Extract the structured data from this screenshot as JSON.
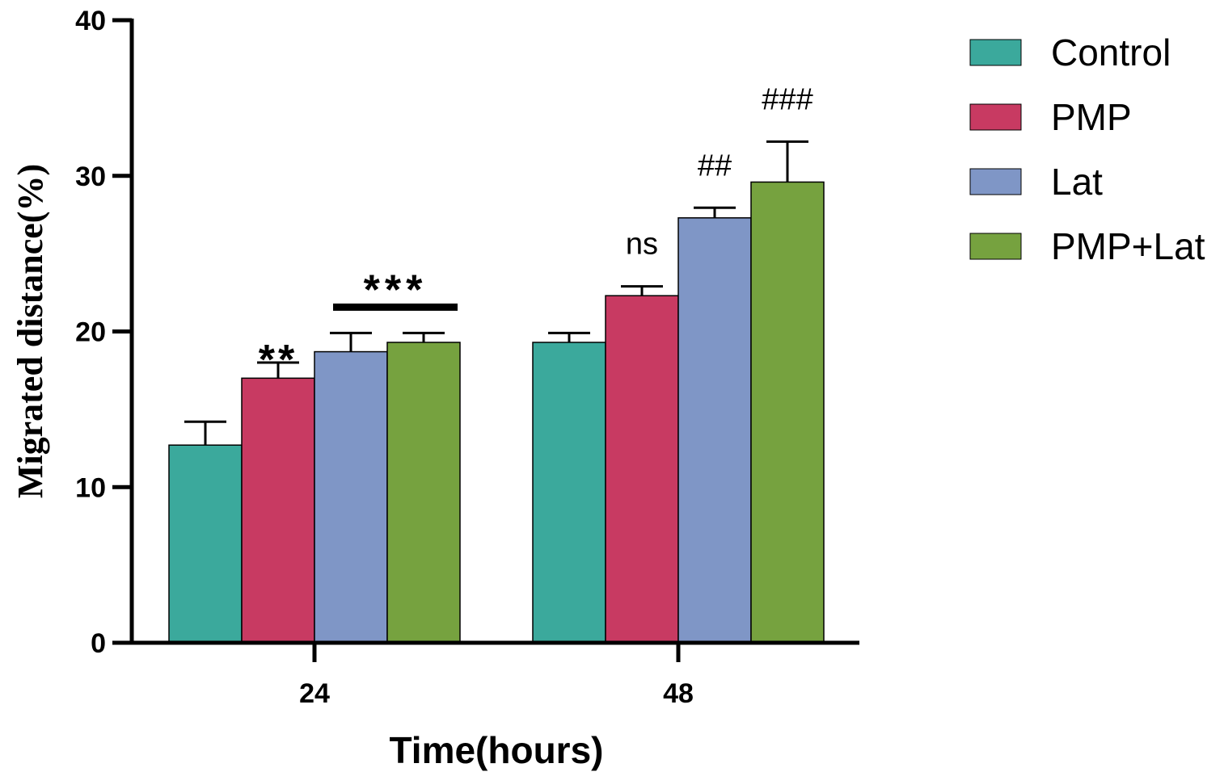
{
  "chart_data": {
    "type": "bar",
    "xlabel": "Time(hours)",
    "ylabel": "Migrated distance(%)",
    "categories": [
      "24",
      "48"
    ],
    "ylim": [
      0,
      40
    ],
    "yticks": [
      0,
      10,
      20,
      30,
      40
    ],
    "grid": false,
    "legend_position": "right",
    "series": [
      {
        "name": "Control",
        "color": "#3BA99C",
        "values": [
          12.7,
          19.3
        ],
        "errors": [
          1.5,
          0.6
        ]
      },
      {
        "name": "PMP",
        "color": "#C83A62",
        "values": [
          17.0,
          22.3
        ],
        "errors": [
          1.0,
          0.6
        ]
      },
      {
        "name": "Lat",
        "color": "#7F96C6",
        "values": [
          18.7,
          27.3
        ],
        "errors": [
          1.2,
          0.65
        ]
      },
      {
        "name": "PMP+Lat",
        "color": "#76A23F",
        "values": [
          19.3,
          29.6
        ],
        "errors": [
          0.6,
          2.6
        ]
      }
    ],
    "annotations": [
      {
        "text": "**",
        "category": "24",
        "series": "PMP"
      },
      {
        "text": "***",
        "category": "24",
        "series": "Lat–PMP+Lat",
        "bracket": true
      },
      {
        "text": "ns",
        "category": "48",
        "series": "PMP"
      },
      {
        "text": "##",
        "category": "48",
        "series": "Lat"
      },
      {
        "text": "###",
        "category": "48",
        "series": "PMP+Lat"
      }
    ]
  }
}
